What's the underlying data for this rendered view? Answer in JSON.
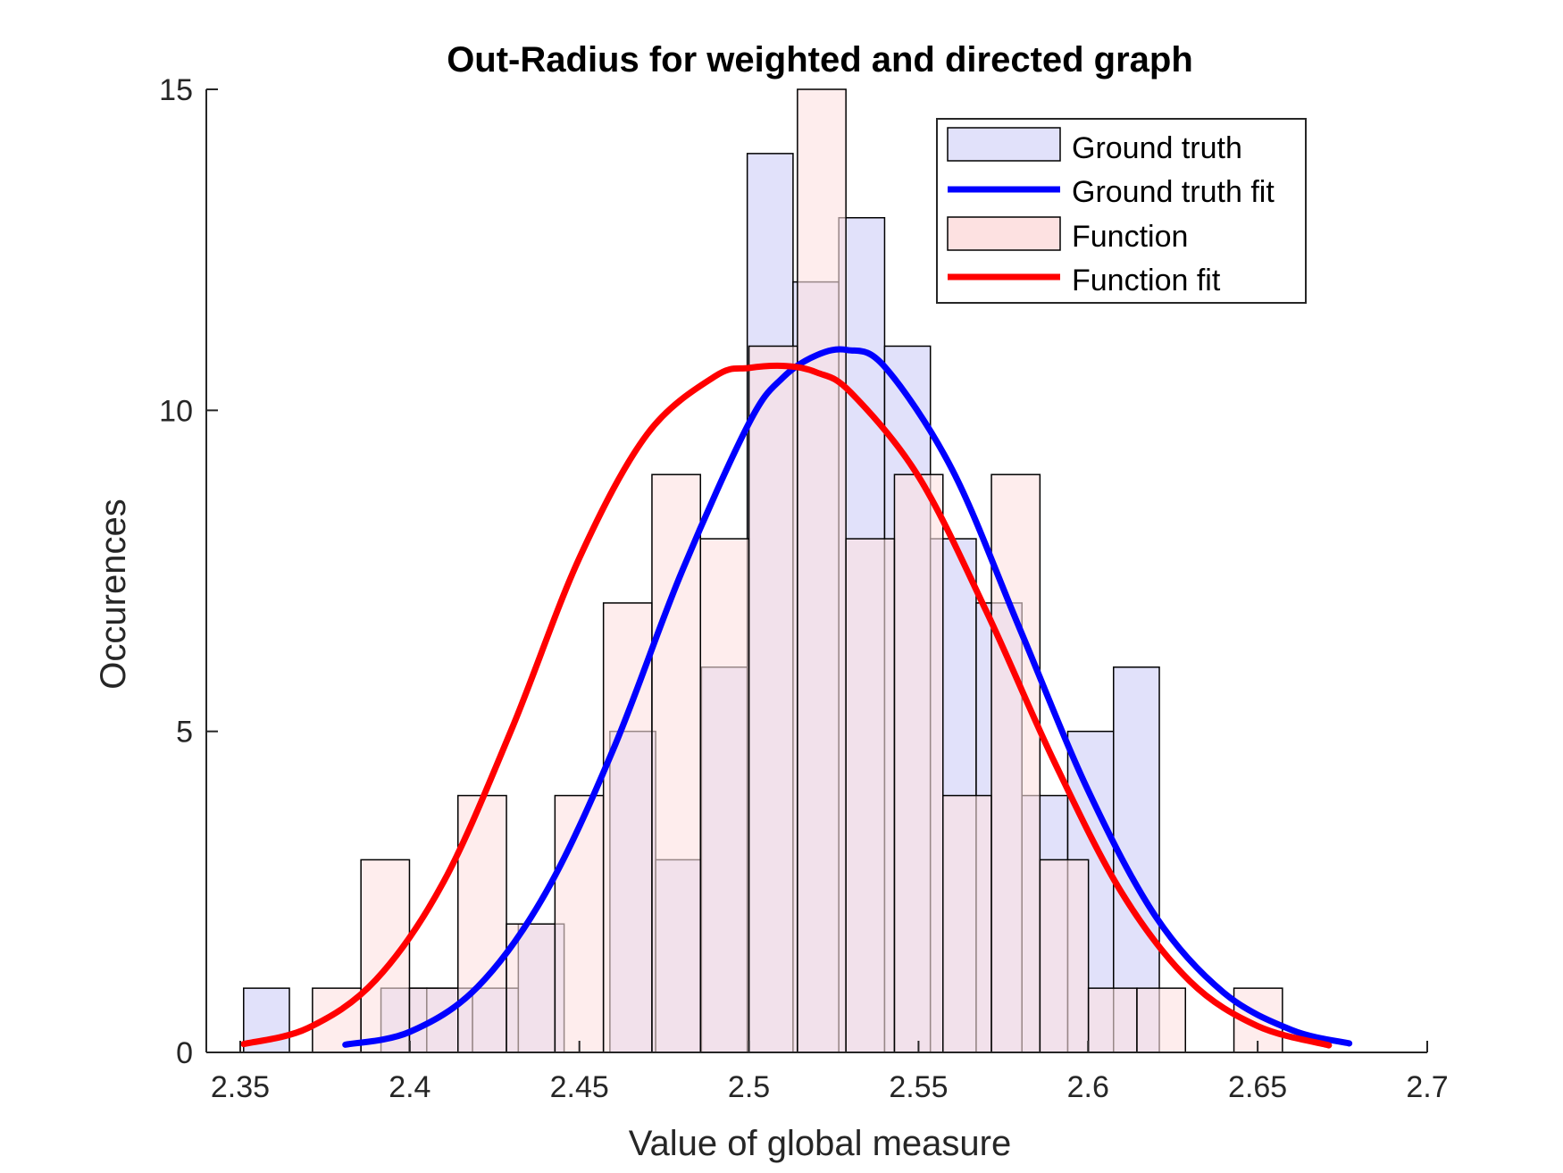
{
  "chart_data": {
    "type": "bar",
    "title": "Out-Radius for weighted and directed graph",
    "xlabel": "Value of global measure",
    "ylabel": "Occurences",
    "xlim": [
      2.34,
      2.7
    ],
    "ylim": [
      0,
      15
    ],
    "x_ticks": [
      "2.35",
      "2.4",
      "2.45",
      "2.5",
      "2.55",
      "2.6",
      "2.65",
      "2.7"
    ],
    "x_tick_values": [
      2.35,
      2.4,
      2.45,
      2.5,
      2.55,
      2.6,
      2.65,
      2.7
    ],
    "y_ticks": [
      "0",
      "5",
      "10",
      "15"
    ],
    "y_tick_values": [
      0,
      5,
      10,
      15
    ],
    "grid": false,
    "legend_position": "top-right",
    "series": [
      {
        "name": "Ground truth",
        "kind": "histogram",
        "color": "#e1e1fa",
        "bins": [
          {
            "x0": 2.351,
            "x1": 2.3645,
            "value": 1
          },
          {
            "x0": 2.3915,
            "x1": 2.405,
            "value": 1
          },
          {
            "x0": 2.405,
            "x1": 2.4185,
            "value": 1
          },
          {
            "x0": 2.4185,
            "x1": 2.432,
            "value": 1
          },
          {
            "x0": 2.432,
            "x1": 2.4455,
            "value": 2
          },
          {
            "x0": 2.459,
            "x1": 2.4725,
            "value": 5
          },
          {
            "x0": 2.4725,
            "x1": 2.486,
            "value": 3
          },
          {
            "x0": 2.486,
            "x1": 2.4995,
            "value": 6
          },
          {
            "x0": 2.4995,
            "x1": 2.513,
            "value": 14
          },
          {
            "x0": 2.513,
            "x1": 2.5265,
            "value": 12
          },
          {
            "x0": 2.5265,
            "x1": 2.54,
            "value": 13
          },
          {
            "x0": 2.54,
            "x1": 2.5535,
            "value": 11
          },
          {
            "x0": 2.5535,
            "x1": 2.567,
            "value": 8
          },
          {
            "x0": 2.567,
            "x1": 2.5805,
            "value": 7
          },
          {
            "x0": 2.5805,
            "x1": 2.594,
            "value": 4
          },
          {
            "x0": 2.594,
            "x1": 2.6075,
            "value": 5
          },
          {
            "x0": 2.6075,
            "x1": 2.621,
            "value": 6
          }
        ]
      },
      {
        "name": "Function",
        "kind": "histogram",
        "color": "#fde1e1",
        "bins": [
          {
            "x0": 2.3713,
            "x1": 2.3856,
            "value": 1
          },
          {
            "x0": 2.3856,
            "x1": 2.3999,
            "value": 3
          },
          {
            "x0": 2.3999,
            "x1": 2.4142,
            "value": 1
          },
          {
            "x0": 2.4142,
            "x1": 2.4285,
            "value": 4
          },
          {
            "x0": 2.4285,
            "x1": 2.4428,
            "value": 2
          },
          {
            "x0": 2.4428,
            "x1": 2.4571,
            "value": 4
          },
          {
            "x0": 2.4571,
            "x1": 2.4714,
            "value": 7
          },
          {
            "x0": 2.4714,
            "x1": 2.4857,
            "value": 9
          },
          {
            "x0": 2.4857,
            "x1": 2.5,
            "value": 8
          },
          {
            "x0": 2.5,
            "x1": 2.5143,
            "value": 11
          },
          {
            "x0": 2.5143,
            "x1": 2.5286,
            "value": 15
          },
          {
            "x0": 2.5286,
            "x1": 2.5429,
            "value": 8
          },
          {
            "x0": 2.5429,
            "x1": 2.5572,
            "value": 9
          },
          {
            "x0": 2.5572,
            "x1": 2.5715,
            "value": 4
          },
          {
            "x0": 2.5715,
            "x1": 2.5858,
            "value": 9
          },
          {
            "x0": 2.5858,
            "x1": 2.6001,
            "value": 3
          },
          {
            "x0": 2.6001,
            "x1": 2.6144,
            "value": 1
          },
          {
            "x0": 2.6144,
            "x1": 2.6287,
            "value": 1
          },
          {
            "x0": 2.643,
            "x1": 2.6573,
            "value": 1
          }
        ]
      },
      {
        "name": "Ground truth fit",
        "kind": "line",
        "color": "#0000ff",
        "x": [
          2.381,
          2.4,
          2.42,
          2.44,
          2.46,
          2.48,
          2.5,
          2.51,
          2.52,
          2.529,
          2.54,
          2.56,
          2.58,
          2.6,
          2.62,
          2.64,
          2.66,
          2.677
        ],
        "values": [
          0.12,
          0.32,
          1.02,
          2.48,
          4.72,
          7.46,
          9.8,
          10.51,
          10.86,
          10.94,
          10.68,
          9.07,
          6.58,
          4.08,
          2.11,
          0.93,
          0.35,
          0.14
        ]
      },
      {
        "name": "Function fit",
        "kind": "line",
        "color": "#ff0000",
        "x": [
          2.351,
          2.37,
          2.39,
          2.41,
          2.43,
          2.45,
          2.47,
          2.49,
          2.5,
          2.511,
          2.52,
          2.53,
          2.55,
          2.57,
          2.59,
          2.61,
          2.63,
          2.65,
          2.671
        ],
        "values": [
          0.13,
          0.38,
          1.13,
          2.66,
          5.03,
          7.7,
          9.63,
          10.53,
          10.66,
          10.69,
          10.59,
          10.28,
          8.97,
          6.87,
          4.53,
          2.48,
          1.11,
          0.41,
          0.11
        ]
      }
    ]
  }
}
